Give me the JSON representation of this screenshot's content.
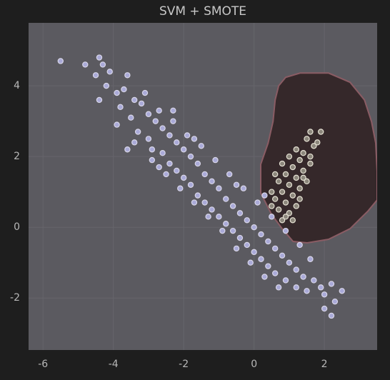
{
  "chart_data": {
    "type": "scatter",
    "title": "SVM + SMOTE",
    "xlim": [
      -6.41,
      3.5
    ],
    "ylim": [
      -3.47,
      5.78
    ],
    "xticks": [
      -6,
      -4,
      -2,
      0,
      2
    ],
    "yticks": [
      -2,
      0,
      2,
      4
    ],
    "grid": true,
    "decision_region": {
      "color": "#35282a",
      "edge_color": "#8a5c64",
      "x": [
        0.7,
        0.9,
        1.31,
        2.12,
        2.73,
        3.14,
        3.34,
        3.46,
        3.5,
        3.5,
        3.24,
        2.73,
        2.12,
        1.51,
        1.11,
        0.8,
        0.5,
        0.19,
        0.19,
        0.4,
        0.54,
        0.6
      ],
      "y": [
        4.0,
        4.24,
        4.36,
        4.36,
        4.1,
        3.6,
        2.99,
        2.38,
        1.58,
        0.77,
        0.46,
        -0.04,
        -0.34,
        -0.44,
        -0.4,
        -0.04,
        0.36,
        0.97,
        1.78,
        2.38,
        2.99,
        3.6
      ]
    },
    "series": [
      {
        "color": "#aaaad8",
        "edge_color": "#d8d6e8",
        "x": [
          -5.5,
          -4.8,
          -4.4,
          -4.3,
          -4.5,
          -4.1,
          -3.6,
          -4.2,
          -3.9,
          -4.4,
          -3.7,
          -3.4,
          -3.8,
          -3.2,
          -3.5,
          -3.0,
          -3.9,
          -2.8,
          -3.3,
          -2.6,
          -3.0,
          -2.4,
          -2.9,
          -2.2,
          -2.6,
          -2.0,
          -2.4,
          -1.8,
          -2.2,
          -1.6,
          -2.0,
          -1.4,
          -1.8,
          -1.2,
          -1.6,
          -1.0,
          -1.4,
          -0.8,
          -1.2,
          -0.6,
          -1.0,
          -0.4,
          -0.8,
          -0.2,
          -0.6,
          0.0,
          -0.4,
          0.2,
          -0.2,
          0.4,
          0.0,
          0.6,
          0.2,
          0.8,
          0.4,
          1.0,
          0.6,
          1.2,
          0.9,
          1.4,
          1.2,
          1.7,
          1.5,
          1.9,
          2.2,
          2.0,
          2.5,
          2.3,
          2.2,
          2.0,
          -3.1,
          -2.7,
          -2.3,
          -1.9,
          -1.5,
          -1.1,
          -0.7,
          -0.3,
          0.1,
          0.5,
          0.9,
          1.3,
          1.6,
          -3.4,
          -2.9,
          -2.5,
          -2.1,
          -1.7,
          -1.3,
          -0.9,
          -0.5,
          -0.1,
          0.3,
          0.7,
          -2.3,
          -1.7,
          -0.5,
          0.3,
          -3.6,
          -2.7
        ],
        "y": [
          4.7,
          4.6,
          4.8,
          4.6,
          4.3,
          4.4,
          4.3,
          4.0,
          3.8,
          3.6,
          3.9,
          3.6,
          3.4,
          3.5,
          3.1,
          3.2,
          2.9,
          3.0,
          2.7,
          2.8,
          2.5,
          2.6,
          2.2,
          2.4,
          2.1,
          2.2,
          1.8,
          2.0,
          1.6,
          1.8,
          1.4,
          1.5,
          1.2,
          1.3,
          0.9,
          1.1,
          0.7,
          0.8,
          0.5,
          0.6,
          0.3,
          0.4,
          0.1,
          0.2,
          -0.1,
          0.0,
          -0.3,
          -0.2,
          -0.5,
          -0.4,
          -0.7,
          -0.6,
          -0.9,
          -0.8,
          -1.1,
          -1.0,
          -1.3,
          -1.2,
          -1.5,
          -1.4,
          -1.7,
          -1.5,
          -1.8,
          -1.7,
          -1.6,
          -1.9,
          -1.8,
          -2.1,
          -2.5,
          -2.3,
          3.8,
          3.3,
          3.0,
          2.6,
          2.3,
          1.9,
          1.5,
          1.1,
          0.7,
          0.3,
          -0.1,
          -0.5,
          -0.9,
          2.4,
          1.9,
          1.5,
          1.1,
          0.7,
          0.3,
          -0.1,
          -0.6,
          -1.0,
          -1.4,
          -1.7,
          3.3,
          2.5,
          1.2,
          0.9,
          2.2,
          1.7
        ]
      },
      {
        "color": "#8c877c",
        "edge_color": "#e6e2d4",
        "x": [
          1.9,
          1.6,
          1.5,
          1.7,
          1.2,
          1.4,
          1.0,
          1.3,
          1.6,
          0.8,
          1.1,
          1.4,
          0.9,
          1.2,
          1.5,
          0.7,
          1.0,
          1.3,
          0.5,
          0.8,
          1.1,
          0.6,
          0.9,
          1.2,
          0.7,
          1.0,
          0.8,
          1.1,
          0.6,
          1.6,
          1.8,
          0.9,
          1.3,
          1.4,
          0.5
        ],
        "y": [
          2.7,
          2.7,
          2.5,
          2.3,
          2.2,
          2.1,
          2.0,
          1.9,
          1.8,
          1.8,
          1.7,
          1.6,
          1.5,
          1.4,
          1.3,
          1.3,
          1.2,
          1.1,
          1.0,
          1.0,
          0.9,
          0.8,
          0.7,
          0.6,
          0.5,
          0.4,
          0.2,
          0.2,
          1.5,
          2.0,
          2.4,
          0.3,
          0.8,
          1.4,
          0.6
        ]
      }
    ]
  }
}
